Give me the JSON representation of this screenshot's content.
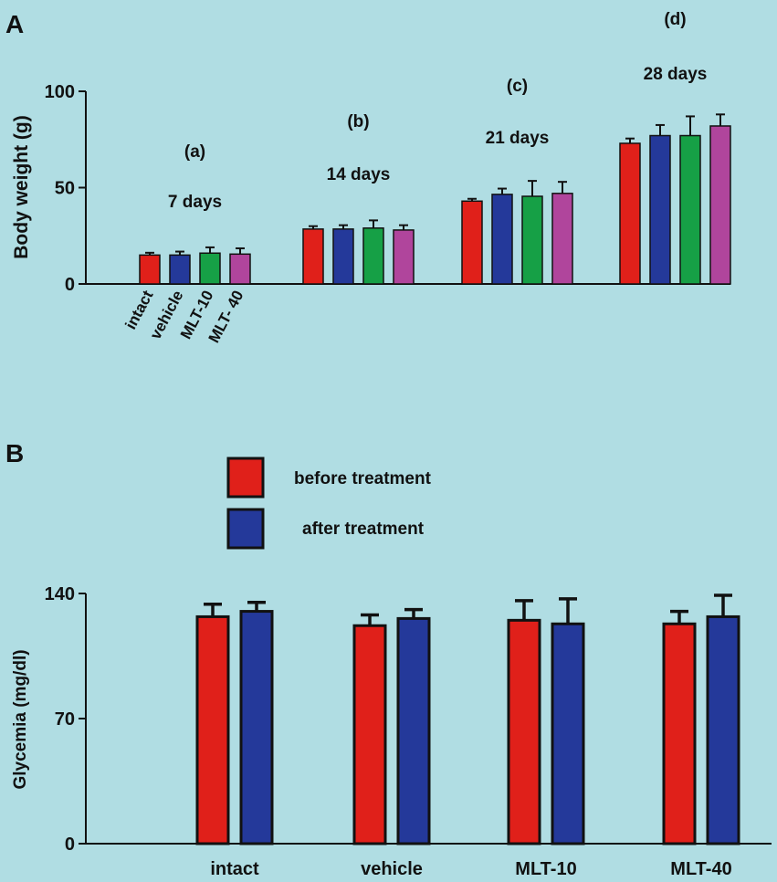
{
  "colors": {
    "background": "#b0dde3",
    "intact": "#e0201a",
    "vehicle": "#24399a",
    "mlt10": "#16a046",
    "mlt40": "#b0459c",
    "before": "#e0201a",
    "after": "#24399a",
    "axis": "#111111"
  },
  "chart_data": [
    {
      "panel": "A",
      "type": "bar",
      "ylabel": "Body weight (g)",
      "ylim": [
        0,
        100
      ],
      "yticks": [
        0,
        50,
        100
      ],
      "category_labels": [
        "intact",
        "vehicle",
        "MLT-10",
        "MLT- 40"
      ],
      "groups": [
        {
          "letter": "(a)",
          "label": "7 days",
          "values": [
            15,
            15,
            16,
            15.5
          ],
          "errors": [
            1.2,
            1.8,
            3,
            3
          ]
        },
        {
          "letter": "(b)",
          "label": "14 days",
          "values": [
            28.5,
            28.5,
            29,
            28
          ],
          "errors": [
            1.5,
            2,
            4,
            2.5
          ]
        },
        {
          "letter": "(c)",
          "label": "21 days",
          "values": [
            43,
            46.5,
            45.5,
            47
          ],
          "errors": [
            1.2,
            3,
            8,
            6
          ]
        },
        {
          "letter": "(d)",
          "label": "28 days",
          "values": [
            73,
            77,
            77,
            82
          ],
          "errors": [
            2.5,
            5.5,
            10,
            6
          ]
        }
      ]
    },
    {
      "panel": "B",
      "type": "bar",
      "ylabel": "Glycemia (mg/dl)",
      "ylim": [
        0,
        140
      ],
      "yticks": [
        0,
        70,
        140
      ],
      "categories": [
        "intact",
        "vehicle",
        "MLT-10",
        "MLT-40"
      ],
      "series": [
        {
          "name": "before treatment",
          "values": [
            127,
            122,
            125,
            123
          ],
          "errors": [
            7,
            6,
            11,
            7
          ]
        },
        {
          "name": "after treatment",
          "values": [
            130,
            126,
            123,
            127
          ],
          "errors": [
            5,
            5,
            14,
            12
          ]
        }
      ]
    }
  ]
}
